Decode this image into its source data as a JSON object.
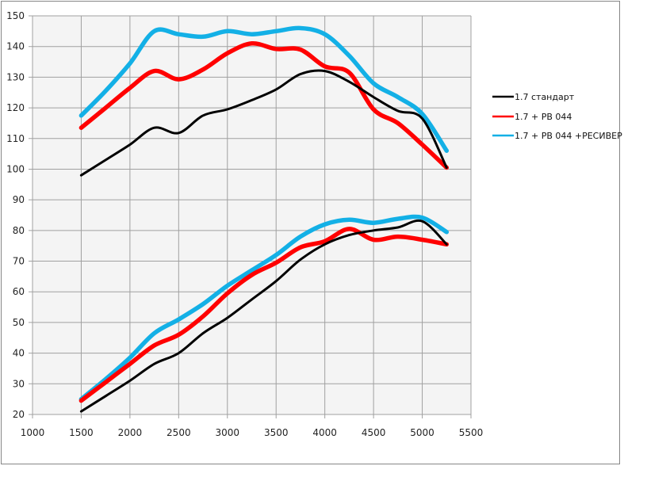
{
  "chart_data": {
    "type": "line",
    "title": "",
    "xlabel": "",
    "ylabel": "",
    "xlim": [
      1000,
      5500
    ],
    "ylim": [
      20,
      150
    ],
    "x_ticks": [
      1000,
      1500,
      2000,
      2500,
      3000,
      3500,
      4000,
      4500,
      5000,
      5500
    ],
    "y_ticks": [
      20,
      30,
      40,
      50,
      60,
      70,
      80,
      90,
      100,
      110,
      120,
      130,
      140,
      150
    ],
    "grid": true,
    "legend_position": "right",
    "x": [
      1500,
      1750,
      2000,
      2250,
      2500,
      2750,
      3000,
      3250,
      3500,
      3750,
      4000,
      4250,
      4500,
      4750,
      5000,
      5250
    ],
    "series": [
      {
        "name": "1.7 стандарт",
        "color": "#000000",
        "group": "upper",
        "legend": true,
        "values": [
          98,
          103,
          108,
          113.5,
          111.8,
          117.5,
          119.5,
          122.5,
          126,
          131,
          132,
          128.5,
          123.5,
          119,
          116.5,
          100.5
        ]
      },
      {
        "name": "1.7 + РВ 044",
        "color": "#ff0000",
        "group": "upper",
        "legend": true,
        "values": [
          113.5,
          120,
          126.5,
          132,
          129.3,
          132.5,
          137.8,
          141,
          139.2,
          139,
          133.5,
          131.5,
          119.5,
          115,
          108,
          100.5
        ]
      },
      {
        "name": "1.7 + РВ 044 +РЕСИВЕР",
        "color": "#13b0e6",
        "group": "upper",
        "legend": true,
        "values": [
          117.5,
          125.5,
          134.5,
          145,
          144,
          143.2,
          145,
          144,
          145,
          146,
          144,
          137,
          128,
          123.5,
          118,
          106
        ]
      },
      {
        "name": "1.7 стандарт",
        "color": "#000000",
        "group": "lower",
        "legend": false,
        "values": [
          21,
          26,
          31,
          36.5,
          40,
          46.5,
          51.5,
          57.5,
          63.5,
          70.5,
          75.5,
          78.5,
          80,
          81,
          83,
          75.5
        ]
      },
      {
        "name": "1.7 + РВ 044",
        "color": "#ff0000",
        "group": "lower",
        "legend": false,
        "values": [
          24.5,
          30.5,
          36.5,
          42.5,
          46,
          52,
          59.5,
          65.5,
          69.5,
          74.5,
          76.5,
          80.5,
          77,
          78,
          77,
          75.5
        ]
      },
      {
        "name": "1.7 + РВ 044 +РЕСИВЕР",
        "color": "#13b0e6",
        "group": "lower",
        "legend": false,
        "values": [
          25,
          31.5,
          38.5,
          46.5,
          51,
          56,
          62,
          67,
          72,
          78,
          82,
          83.5,
          82.5,
          83.8,
          84.2,
          79.5
        ]
      }
    ],
    "legend": [
      {
        "label": "1.7 стандарт",
        "color": "#000000"
      },
      {
        "label": "1.7 + РВ 044",
        "color": "#ff0000"
      },
      {
        "label": "1.7 + РВ 044 +РЕСИВЕР",
        "color": "#13b0e6"
      }
    ]
  },
  "colors": {
    "plot_background": "#f4f4f4",
    "grid": "#a0a0a0",
    "frame": "#868686"
  }
}
